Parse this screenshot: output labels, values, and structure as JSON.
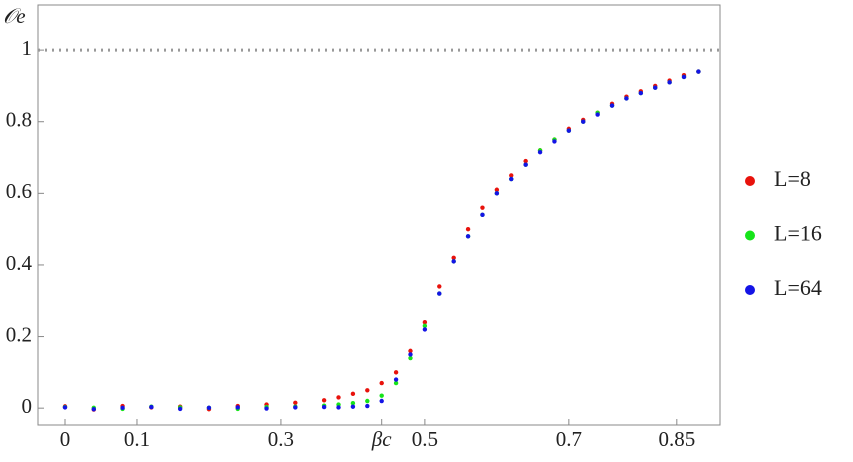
{
  "chart_data": {
    "type": "scatter",
    "ylabel": "𝒪e",
    "x": [
      0,
      0.04,
      0.08,
      0.12,
      0.16,
      0.2,
      0.24,
      0.28,
      0.32,
      0.36,
      0.38,
      0.4,
      0.42,
      0.44,
      0.46,
      0.48,
      0.5,
      0.52,
      0.54,
      0.56,
      0.58,
      0.6,
      0.62,
      0.64,
      0.66,
      0.68,
      0.7,
      0.72,
      0.74,
      0.76,
      0.78,
      0.8,
      0.82,
      0.84,
      0.86,
      0.88
    ],
    "series": [
      {
        "name": "L=8",
        "color": "#e8120c",
        "values": [
          0.005,
          -0.004,
          0.006,
          0.002,
          0.004,
          -0.003,
          0.006,
          0.01,
          0.015,
          0.022,
          0.03,
          0.04,
          0.05,
          0.07,
          0.1,
          0.16,
          0.24,
          0.34,
          0.42,
          0.5,
          0.56,
          0.61,
          0.65,
          0.69,
          0.72,
          0.75,
          0.78,
          0.805,
          0.825,
          0.85,
          0.87,
          0.885,
          0.9,
          0.915,
          0.93,
          0.94
        ]
      },
      {
        "name": "L=16",
        "color": "#16e41a",
        "values": [
          0.003,
          0.001,
          -0.002,
          0.004,
          0.002,
          0.001,
          -0.002,
          0.003,
          0.004,
          0.007,
          0.01,
          0.014,
          0.02,
          0.035,
          0.07,
          0.14,
          0.23,
          0.32,
          0.41,
          0.48,
          0.54,
          0.6,
          0.64,
          0.68,
          0.72,
          0.75,
          0.775,
          0.8,
          0.825,
          0.845,
          0.865,
          0.88,
          0.895,
          0.91,
          0.925,
          0.94
        ]
      },
      {
        "name": "L=64",
        "color": "#1414e6",
        "values": [
          0.002,
          -0.003,
          0.001,
          0.003,
          -0.002,
          0.001,
          0.002,
          -0.001,
          0.002,
          0.003,
          0.002,
          0.004,
          0.006,
          0.02,
          0.08,
          0.15,
          0.22,
          0.32,
          0.41,
          0.48,
          0.54,
          0.6,
          0.64,
          0.68,
          0.715,
          0.745,
          0.775,
          0.8,
          0.82,
          0.845,
          0.865,
          0.88,
          0.895,
          0.91,
          0.925,
          0.94
        ]
      }
    ],
    "xlim": [
      -0.0375,
      0.91
    ],
    "ylim": [
      -0.047,
      1.126
    ],
    "xticks": [
      0,
      0.1,
      0.3,
      {
        "value": 0.44,
        "label": "βc"
      },
      0.5,
      0.7,
      0.85
    ],
    "yticks": [
      0,
      0.2,
      0.4,
      0.6,
      0.8,
      1
    ],
    "hline": 1,
    "legend": "right"
  }
}
